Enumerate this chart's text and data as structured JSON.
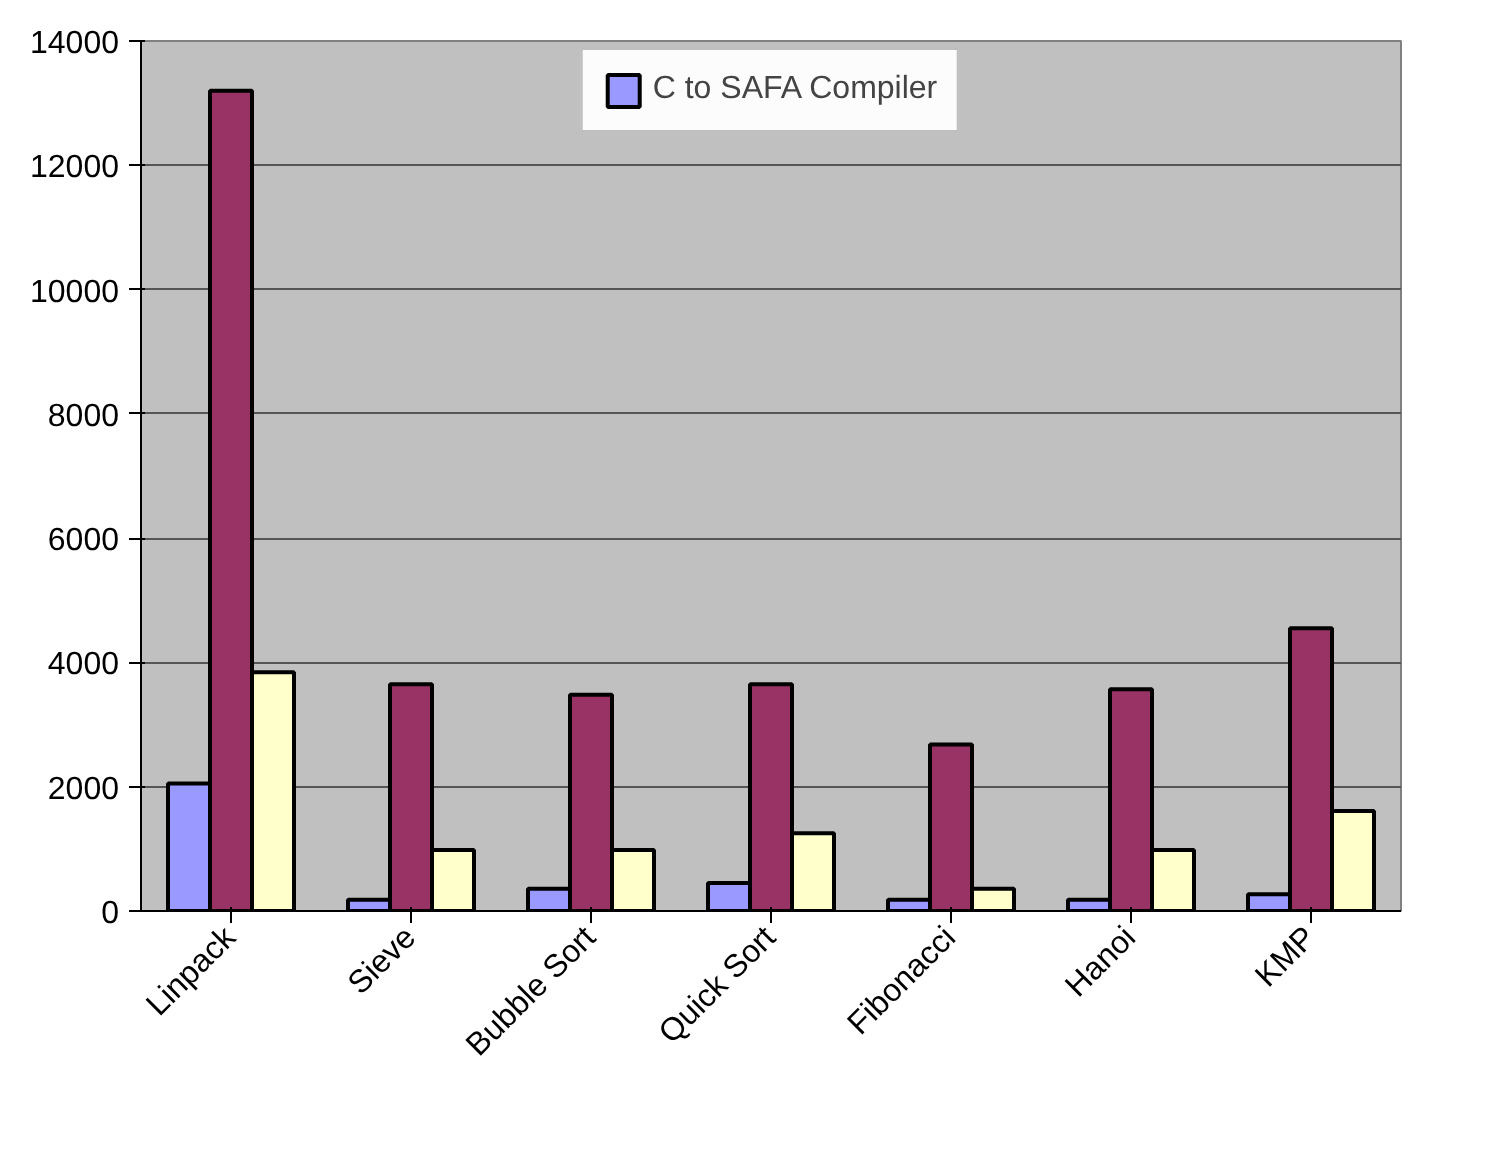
{
  "chart_data": {
    "type": "bar",
    "categories": [
      "Linpack",
      "Sieve",
      "Bubble Sort",
      "Quick Sort",
      "Fibonacci",
      "Hanoi",
      "KMP"
    ],
    "series": [
      {
        "name": "C to SAFA Compiler",
        "color": "#9999ff",
        "values": [
          2050,
          180,
          360,
          450,
          180,
          180,
          270
        ]
      },
      {
        "color": "#993366",
        "values": [
          13200,
          3650,
          3480,
          3650,
          2680,
          3570,
          4550
        ]
      },
      {
        "color": "#ffffcc",
        "values": [
          3840,
          980,
          980,
          1250,
          360,
          980,
          1610
        ]
      }
    ],
    "ylim": [
      0,
      14000
    ],
    "yticks": [
      0,
      2000,
      4000,
      6000,
      8000,
      10000,
      12000,
      14000
    ],
    "grid": "y",
    "legend": "top"
  }
}
